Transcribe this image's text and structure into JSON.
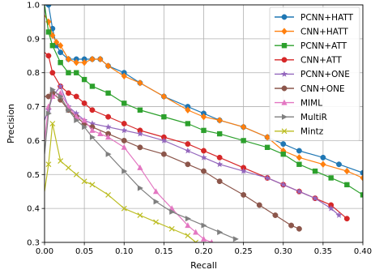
{
  "chart_data": {
    "type": "line",
    "title": "",
    "xlabel": "Recall",
    "ylabel": "Precision",
    "xlim": [
      0.0,
      0.4
    ],
    "ylim": [
      0.3,
      1.0
    ],
    "xticks": [
      "0.00",
      "0.05",
      "0.10",
      "0.15",
      "0.20",
      "0.25",
      "0.30",
      "0.35",
      "0.40"
    ],
    "yticks": [
      "0.3",
      "0.4",
      "0.5",
      "0.6",
      "0.7",
      "0.8",
      "0.9",
      "1.0"
    ],
    "grid": true,
    "legend_position": "top-right",
    "series": [
      {
        "name": "PCNN+HATT",
        "color": "#1f77b4",
        "marker": "circle",
        "x": [
          0.0,
          0.005,
          0.01,
          0.015,
          0.02,
          0.03,
          0.04,
          0.05,
          0.06,
          0.07,
          0.08,
          0.1,
          0.12,
          0.15,
          0.18,
          0.2,
          0.22,
          0.25,
          0.28,
          0.3,
          0.32,
          0.35,
          0.37,
          0.4
        ],
        "y": [
          1.0,
          1.0,
          0.93,
          0.88,
          0.86,
          0.84,
          0.84,
          0.84,
          0.84,
          0.84,
          0.82,
          0.8,
          0.77,
          0.73,
          0.7,
          0.68,
          0.66,
          0.64,
          0.61,
          0.59,
          0.57,
          0.55,
          0.53,
          0.505
        ]
      },
      {
        "name": "CNN+HATT",
        "color": "#ff7f0e",
        "marker": "diamond",
        "x": [
          0.0,
          0.005,
          0.01,
          0.015,
          0.02,
          0.03,
          0.04,
          0.05,
          0.06,
          0.07,
          0.08,
          0.1,
          0.12,
          0.15,
          0.18,
          0.2,
          0.22,
          0.25,
          0.28,
          0.3,
          0.32,
          0.35,
          0.38,
          0.4
        ],
        "y": [
          0.97,
          0.95,
          0.91,
          0.89,
          0.88,
          0.84,
          0.83,
          0.83,
          0.84,
          0.84,
          0.82,
          0.79,
          0.77,
          0.73,
          0.69,
          0.67,
          0.66,
          0.64,
          0.61,
          0.57,
          0.55,
          0.53,
          0.51,
          0.49
        ]
      },
      {
        "name": "PCNN+ATT",
        "color": "#2ca02c",
        "marker": "square",
        "x": [
          0.0,
          0.005,
          0.01,
          0.02,
          0.03,
          0.04,
          0.05,
          0.06,
          0.08,
          0.1,
          0.12,
          0.15,
          0.18,
          0.2,
          0.22,
          0.25,
          0.28,
          0.3,
          0.32,
          0.34,
          0.36,
          0.38,
          0.4
        ],
        "y": [
          1.0,
          0.92,
          0.88,
          0.83,
          0.8,
          0.8,
          0.78,
          0.76,
          0.74,
          0.71,
          0.69,
          0.67,
          0.65,
          0.63,
          0.62,
          0.6,
          0.58,
          0.56,
          0.53,
          0.51,
          0.49,
          0.47,
          0.44
        ]
      },
      {
        "name": "CNN+ATT",
        "color": "#d62728",
        "marker": "circle",
        "x": [
          0.0,
          0.005,
          0.01,
          0.02,
          0.03,
          0.04,
          0.05,
          0.06,
          0.08,
          0.1,
          0.12,
          0.15,
          0.18,
          0.2,
          0.22,
          0.25,
          0.28,
          0.3,
          0.32,
          0.34,
          0.36,
          0.38
        ],
        "y": [
          0.86,
          0.85,
          0.8,
          0.76,
          0.74,
          0.73,
          0.71,
          0.69,
          0.67,
          0.65,
          0.63,
          0.61,
          0.59,
          0.57,
          0.55,
          0.52,
          0.49,
          0.47,
          0.45,
          0.43,
          0.41,
          0.37
        ]
      },
      {
        "name": "PCNN+ONE",
        "color": "#9467bd",
        "marker": "star",
        "x": [
          0.0,
          0.005,
          0.01,
          0.02,
          0.03,
          0.04,
          0.05,
          0.06,
          0.08,
          0.1,
          0.12,
          0.15,
          0.18,
          0.2,
          0.22,
          0.25,
          0.28,
          0.3,
          0.32,
          0.34,
          0.36,
          0.37
        ],
        "y": [
          0.66,
          0.69,
          0.73,
          0.76,
          0.7,
          0.68,
          0.66,
          0.65,
          0.64,
          0.63,
          0.62,
          0.6,
          0.57,
          0.55,
          0.53,
          0.51,
          0.49,
          0.47,
          0.45,
          0.43,
          0.4,
          0.38
        ]
      },
      {
        "name": "CNN+ONE",
        "color": "#8c564b",
        "marker": "circle",
        "x": [
          0.0,
          0.005,
          0.01,
          0.02,
          0.03,
          0.04,
          0.05,
          0.06,
          0.08,
          0.1,
          0.12,
          0.15,
          0.18,
          0.2,
          0.22,
          0.25,
          0.27,
          0.29,
          0.31,
          0.32
        ],
        "y": [
          0.73,
          0.73,
          0.74,
          0.72,
          0.69,
          0.67,
          0.65,
          0.64,
          0.62,
          0.6,
          0.58,
          0.56,
          0.53,
          0.51,
          0.48,
          0.44,
          0.41,
          0.38,
          0.35,
          0.34
        ]
      },
      {
        "name": "MIML",
        "color": "#e377c2",
        "marker": "triangle-up",
        "x": [
          0.0,
          0.005,
          0.01,
          0.02,
          0.03,
          0.04,
          0.05,
          0.06,
          0.07,
          0.08,
          0.1,
          0.12,
          0.14,
          0.16,
          0.18,
          0.19,
          0.2,
          0.21
        ],
        "y": [
          0.6,
          0.7,
          0.73,
          0.74,
          0.7,
          0.67,
          0.66,
          0.63,
          0.62,
          0.61,
          0.58,
          0.52,
          0.45,
          0.4,
          0.35,
          0.33,
          0.31,
          0.3
        ]
      },
      {
        "name": "MultiR",
        "color": "#7f7f7f",
        "marker": "triangle-right",
        "x": [
          0.0,
          0.005,
          0.01,
          0.02,
          0.03,
          0.04,
          0.05,
          0.06,
          0.08,
          0.1,
          0.12,
          0.14,
          0.16,
          0.18,
          0.2,
          0.22,
          0.24
        ],
        "y": [
          0.56,
          0.68,
          0.75,
          0.73,
          0.69,
          0.66,
          0.64,
          0.61,
          0.56,
          0.51,
          0.46,
          0.42,
          0.39,
          0.37,
          0.35,
          0.33,
          0.31
        ]
      },
      {
        "name": "Mintz",
        "color": "#bcbd22",
        "marker": "x",
        "x": [
          0.0,
          0.005,
          0.01,
          0.02,
          0.03,
          0.04,
          0.05,
          0.06,
          0.08,
          0.1,
          0.12,
          0.14,
          0.16,
          0.18,
          0.19
        ],
        "y": [
          0.45,
          0.53,
          0.65,
          0.54,
          0.52,
          0.5,
          0.48,
          0.47,
          0.44,
          0.4,
          0.38,
          0.36,
          0.34,
          0.32,
          0.3
        ]
      }
    ]
  }
}
